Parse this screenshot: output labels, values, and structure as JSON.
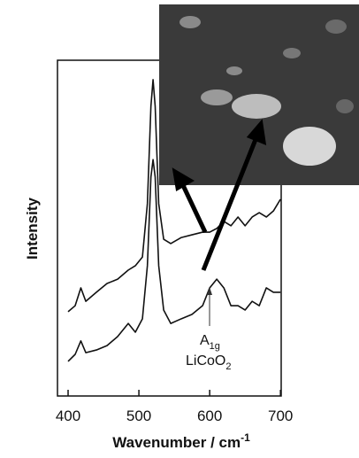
{
  "chart_data": {
    "type": "line",
    "xlabel": {
      "text": "Wavenumber  /  cm",
      "sup": "-1"
    },
    "ylabel": "Intensity",
    "annotation": {
      "line1": {
        "text": "A",
        "sub": "1g"
      },
      "line2": {
        "text": "LiCoO",
        "sub": "2"
      }
    },
    "xlim": [
      385,
      701
    ],
    "xticks": [
      400,
      500,
      600,
      700
    ],
    "ylim": [
      0,
      100
    ],
    "x": [
      400,
      410,
      418,
      425,
      440,
      455,
      470,
      485,
      495,
      505,
      512,
      517,
      520,
      523,
      528,
      535,
      545,
      560,
      575,
      590,
      600,
      610,
      620,
      630,
      640,
      650,
      660,
      670,
      680,
      690,
      700
    ],
    "series": [
      {
        "color": "#111111",
        "values": [
          25.1,
          26.9,
          32.2,
          28.2,
          30.9,
          33.5,
          34.8,
          37.5,
          38.8,
          41.4,
          57.3,
          86.3,
          94.2,
          86.3,
          57.3,
          46.7,
          45.4,
          47.2,
          48.0,
          48.8,
          48.8,
          49.9,
          52.0,
          50.7,
          53.3,
          50.7,
          53.3,
          54.6,
          53.3,
          55.1,
          58.6
        ]
      },
      {
        "color": "#111111",
        "values": [
          10.3,
          12.4,
          16.4,
          12.9,
          13.7,
          15.0,
          17.7,
          21.6,
          19.0,
          23.0,
          38.8,
          65.2,
          70.4,
          65.2,
          38.8,
          25.6,
          21.6,
          23.0,
          24.3,
          26.9,
          32.2,
          34.8,
          32.2,
          26.9,
          26.9,
          25.6,
          28.2,
          26.9,
          32.2,
          30.9,
          30.9
        ]
      }
    ]
  }
}
